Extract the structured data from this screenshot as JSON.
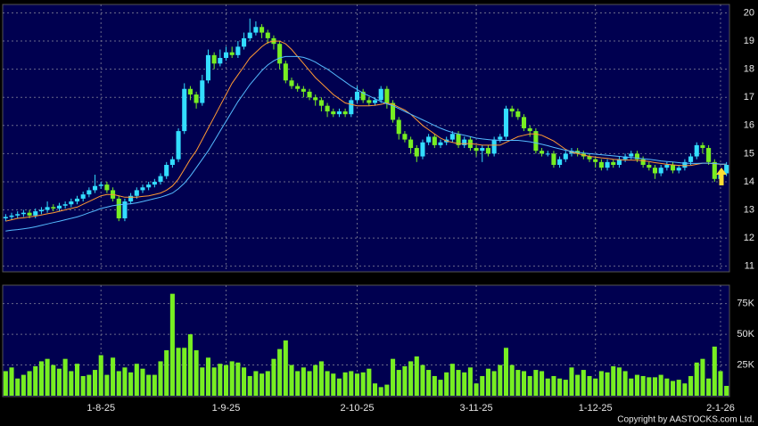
{
  "chart_data": [
    {
      "type": "candlestick",
      "open": [
        12.7,
        12.75,
        12.8,
        12.85,
        12.9,
        12.8,
        12.95,
        13.0,
        13.1,
        13.05,
        13.15,
        13.2,
        13.3,
        13.4,
        13.55,
        13.7,
        13.85,
        13.9,
        13.7,
        13.4,
        12.7,
        13.3,
        13.5,
        13.7,
        13.8,
        13.9,
        14.0,
        14.2,
        14.6,
        14.8,
        15.8,
        17.3,
        17.1,
        16.8,
        17.6,
        18.5,
        18.2,
        18.4,
        18.6,
        18.5,
        18.8,
        19.1,
        19.3,
        19.5,
        19.3,
        19.1,
        18.9,
        18.2,
        17.6,
        17.4,
        17.3,
        17.2,
        17.0,
        16.9,
        16.7,
        16.5,
        16.4,
        16.5,
        16.4,
        16.9,
        17.2,
        16.9,
        16.8,
        16.9,
        17.3,
        16.8,
        16.2,
        15.7,
        15.5,
        15.2,
        14.9,
        15.4,
        15.6,
        15.3,
        15.4,
        15.5,
        15.7,
        15.3,
        15.5,
        15.2,
        15.1,
        15.2,
        15.0,
        15.5,
        15.6,
        16.6,
        16.5,
        16.3,
        15.9,
        15.8,
        15.1,
        15.0,
        15.0,
        14.6,
        14.8,
        15.0,
        15.1,
        15.0,
        14.9,
        14.8,
        14.7,
        14.5,
        14.7,
        14.6,
        14.8,
        14.9,
        15.0,
        14.8,
        14.6,
        14.5,
        14.3,
        14.5,
        14.6,
        14.4,
        14.5,
        14.7,
        14.9,
        15.3,
        15.2,
        14.7,
        14.1,
        14.3
      ],
      "high": [
        12.85,
        12.9,
        12.95,
        13.0,
        13.0,
        13.05,
        13.1,
        13.3,
        13.2,
        13.25,
        13.3,
        13.4,
        13.5,
        13.65,
        13.8,
        14.25,
        14.0,
        14.0,
        13.8,
        13.5,
        13.4,
        13.6,
        13.8,
        13.9,
        14.0,
        14.1,
        14.3,
        14.7,
        14.9,
        15.9,
        17.5,
        17.4,
        17.2,
        17.8,
        18.7,
        18.6,
        18.7,
        18.8,
        18.8,
        19.0,
        19.3,
        19.8,
        19.7,
        19.6,
        19.4,
        19.2,
        19.0,
        18.3,
        17.7,
        17.5,
        17.4,
        17.3,
        17.1,
        17.0,
        16.8,
        16.6,
        16.6,
        16.6,
        17.0,
        17.4,
        17.3,
        17.0,
        17.0,
        17.4,
        17.4,
        16.9,
        16.3,
        15.8,
        15.6,
        15.3,
        15.5,
        15.7,
        15.7,
        15.5,
        15.6,
        15.8,
        15.8,
        15.6,
        15.6,
        15.3,
        15.3,
        15.3,
        15.6,
        15.7,
        16.7,
        16.7,
        16.6,
        16.4,
        16.0,
        15.9,
        15.2,
        15.1,
        15.1,
        14.9,
        15.1,
        15.2,
        15.2,
        15.1,
        15.0,
        14.9,
        14.8,
        14.8,
        14.8,
        14.9,
        15.0,
        15.1,
        15.1,
        14.9,
        14.7,
        14.6,
        14.6,
        14.7,
        14.7,
        14.6,
        14.8,
        15.0,
        15.4,
        15.4,
        15.3,
        14.8,
        14.4,
        14.7
      ],
      "low": [
        12.6,
        12.65,
        12.7,
        12.75,
        12.7,
        12.7,
        12.85,
        12.9,
        12.95,
        12.95,
        13.05,
        13.1,
        13.2,
        13.3,
        13.45,
        13.6,
        13.75,
        13.6,
        13.3,
        12.6,
        12.6,
        13.2,
        13.4,
        13.6,
        13.7,
        13.8,
        13.9,
        14.1,
        14.5,
        14.7,
        15.7,
        16.9,
        16.6,
        16.7,
        17.5,
        18.0,
        18.1,
        18.3,
        18.4,
        18.4,
        18.7,
        19.0,
        19.2,
        19.1,
        18.9,
        18.7,
        18.0,
        17.5,
        17.3,
        17.2,
        17.0,
        16.9,
        16.7,
        16.5,
        16.3,
        16.3,
        16.3,
        16.3,
        16.3,
        16.8,
        16.8,
        16.7,
        16.7,
        16.8,
        16.6,
        16.1,
        15.5,
        15.4,
        15.0,
        14.7,
        14.8,
        15.3,
        15.2,
        15.2,
        15.3,
        15.4,
        15.2,
        15.2,
        15.1,
        14.9,
        14.7,
        14.9,
        14.9,
        15.4,
        15.5,
        16.3,
        16.2,
        15.8,
        15.6,
        15.0,
        14.9,
        14.9,
        14.5,
        14.5,
        14.7,
        14.9,
        14.9,
        14.8,
        14.7,
        14.5,
        14.4,
        14.4,
        14.5,
        14.5,
        14.7,
        14.8,
        14.7,
        14.5,
        14.4,
        14.1,
        14.2,
        14.4,
        14.3,
        14.3,
        14.4,
        14.6,
        14.8,
        15.0,
        14.6,
        14.0,
        14.0,
        14.2
      ],
      "close": [
        12.75,
        12.8,
        12.85,
        12.9,
        12.8,
        12.95,
        13.0,
        13.1,
        13.05,
        13.15,
        13.2,
        13.3,
        13.4,
        13.55,
        13.7,
        13.85,
        13.9,
        13.7,
        13.4,
        12.7,
        13.3,
        13.5,
        13.7,
        13.8,
        13.9,
        14.0,
        14.2,
        14.6,
        14.8,
        15.8,
        17.3,
        17.1,
        16.8,
        17.6,
        18.5,
        18.2,
        18.4,
        18.6,
        18.5,
        18.8,
        19.1,
        19.3,
        19.5,
        19.3,
        19.1,
        18.9,
        18.2,
        17.6,
        17.4,
        17.3,
        17.2,
        17.0,
        16.9,
        16.7,
        16.5,
        16.4,
        16.5,
        16.4,
        16.9,
        17.2,
        16.9,
        16.8,
        16.9,
        17.3,
        16.8,
        16.2,
        15.7,
        15.5,
        15.2,
        14.9,
        15.4,
        15.6,
        15.3,
        15.4,
        15.5,
        15.7,
        15.3,
        15.5,
        15.2,
        15.1,
        15.2,
        15.0,
        15.5,
        15.6,
        16.6,
        16.5,
        16.3,
        15.9,
        15.8,
        15.1,
        15.0,
        15.0,
        14.6,
        14.8,
        15.0,
        15.1,
        15.0,
        14.9,
        14.8,
        14.7,
        14.5,
        14.7,
        14.6,
        14.8,
        14.9,
        15.0,
        14.8,
        14.6,
        14.5,
        14.3,
        14.5,
        14.6,
        14.4,
        14.5,
        14.7,
        14.9,
        15.3,
        15.2,
        14.7,
        14.1,
        14.3,
        14.6
      ],
      "up_color": "#33ddff",
      "down_color": "#77ee22",
      "lines": [
        {
          "color": "#ff9933",
          "values": [
            12.6,
            12.65,
            12.7,
            12.72,
            12.75,
            12.78,
            12.82,
            12.86,
            12.9,
            12.95,
            13.0,
            13.05,
            13.1,
            13.2,
            13.3,
            13.4,
            13.5,
            13.55,
            13.55,
            13.5,
            13.45,
            13.45,
            13.45,
            13.48,
            13.5,
            13.55,
            13.6,
            13.7,
            13.85,
            14.1,
            14.45,
            14.8,
            15.1,
            15.5,
            15.9,
            16.3,
            16.7,
            17.1,
            17.5,
            17.8,
            18.1,
            18.4,
            18.6,
            18.8,
            18.95,
            19.0,
            19.0,
            18.9,
            18.7,
            18.45,
            18.2,
            17.95,
            17.7,
            17.5,
            17.3,
            17.1,
            16.95,
            16.8,
            16.75,
            16.7,
            16.7,
            16.7,
            16.72,
            16.75,
            16.8,
            16.75,
            16.65,
            16.55,
            16.4,
            16.2,
            16.0,
            15.85,
            15.7,
            15.55,
            15.45,
            15.4,
            15.35,
            15.35,
            15.35,
            15.33,
            15.3,
            15.3,
            15.3,
            15.3,
            15.4,
            15.5,
            15.6,
            15.65,
            15.7,
            15.7,
            15.65,
            15.55,
            15.45,
            15.3,
            15.15,
            15.05,
            15.0,
            14.95,
            14.9,
            14.88,
            14.85,
            14.83,
            14.8,
            14.78,
            14.77,
            14.77,
            14.76,
            14.75,
            14.72,
            14.68,
            14.65,
            14.62,
            14.6,
            14.58,
            14.57,
            14.58,
            14.62,
            14.66,
            14.66,
            14.64,
            14.62,
            14.62
          ]
        },
        {
          "color": "#55bbff",
          "values": [
            12.25,
            12.28,
            12.3,
            12.33,
            12.36,
            12.4,
            12.45,
            12.5,
            12.55,
            12.6,
            12.65,
            12.7,
            12.75,
            12.82,
            12.9,
            12.97,
            13.05,
            13.1,
            13.15,
            13.18,
            13.2,
            13.22,
            13.25,
            13.3,
            13.35,
            13.4,
            13.45,
            13.52,
            13.6,
            13.75,
            13.95,
            14.2,
            14.5,
            14.8,
            15.1,
            15.45,
            15.8,
            16.15,
            16.5,
            16.85,
            17.15,
            17.45,
            17.7,
            17.95,
            18.15,
            18.3,
            18.4,
            18.45,
            18.45,
            18.45,
            18.42,
            18.35,
            18.25,
            18.12,
            18.0,
            17.85,
            17.7,
            17.55,
            17.4,
            17.28,
            17.15,
            17.05,
            16.95,
            16.85,
            16.77,
            16.7,
            16.6,
            16.5,
            16.4,
            16.3,
            16.2,
            16.1,
            16.0,
            15.9,
            15.82,
            15.75,
            15.7,
            15.65,
            15.6,
            15.55,
            15.52,
            15.5,
            15.48,
            15.47,
            15.47,
            15.47,
            15.47,
            15.45,
            15.42,
            15.38,
            15.33,
            15.28,
            15.22,
            15.17,
            15.12,
            15.08,
            15.05,
            15.02,
            15.0,
            14.98,
            14.96,
            14.94,
            14.92,
            14.9,
            14.88,
            14.86,
            14.84,
            14.82,
            14.8,
            14.77,
            14.74,
            14.72,
            14.7,
            14.68,
            14.66,
            14.65,
            14.65,
            14.66,
            14.66,
            14.65,
            14.63,
            14.63
          ]
        }
      ],
      "ylim": [
        10.8,
        20.3
      ],
      "yticks": [
        11,
        12,
        13,
        14,
        15,
        16,
        17,
        18,
        19,
        20
      ],
      "grid": true
    },
    {
      "type": "bar",
      "categories": [
        null,
        null,
        null,
        null,
        null,
        null,
        null,
        null,
        null,
        null,
        null,
        null,
        null,
        null,
        null,
        null,
        "1-8-25",
        null,
        null,
        null,
        null,
        null,
        null,
        null,
        null,
        null,
        null,
        null,
        null,
        null,
        null,
        null,
        null,
        null,
        null,
        null,
        null,
        "1-9-25",
        null,
        null,
        null,
        null,
        null,
        null,
        null,
        null,
        null,
        null,
        null,
        null,
        null,
        null,
        null,
        null,
        null,
        null,
        null,
        null,
        null,
        "2-10-25",
        null,
        null,
        null,
        null,
        null,
        null,
        null,
        null,
        null,
        null,
        null,
        null,
        null,
        null,
        null,
        null,
        null,
        null,
        null,
        "3-11-25",
        null,
        null,
        null,
        null,
        null,
        null,
        null,
        null,
        null,
        null,
        null,
        null,
        null,
        null,
        null,
        null,
        null,
        null,
        null,
        "1-12-25",
        null,
        null,
        null,
        null,
        null,
        null,
        null,
        null,
        null,
        null,
        null,
        null,
        null,
        null,
        null,
        null,
        null,
        null,
        null,
        null,
        "2-1-26",
        null
      ],
      "values": [
        20000,
        23000,
        14000,
        17000,
        20000,
        24000,
        28000,
        30000,
        25000,
        22000,
        30000,
        20000,
        26000,
        16000,
        17000,
        21000,
        33000,
        17000,
        31000,
        20000,
        23000,
        19000,
        26000,
        22000,
        17000,
        17000,
        28000,
        37000,
        83000,
        39000,
        39000,
        50000,
        37000,
        23000,
        31000,
        23000,
        26000,
        25000,
        28000,
        27000,
        23000,
        16000,
        20000,
        18000,
        20000,
        30000,
        38000,
        45000,
        25000,
        20000,
        23000,
        20000,
        25000,
        28000,
        20000,
        18000,
        14000,
        19000,
        20000,
        18000,
        19000,
        22000,
        10000,
        7000,
        9000,
        30000,
        21000,
        24000,
        28000,
        32000,
        25000,
        21000,
        16000,
        13000,
        19000,
        26000,
        21000,
        19000,
        23000,
        10000,
        16000,
        22000,
        20000,
        25000,
        39000,
        25000,
        21000,
        20000,
        16000,
        21000,
        20000,
        14000,
        16000,
        14000,
        13000,
        23000,
        17000,
        21000,
        16000,
        14000,
        20000,
        19000,
        24000,
        23000,
        20000,
        14000,
        17000,
        16000,
        15000,
        15000,
        17000,
        14000,
        12000,
        13000,
        10000,
        16000,
        27000,
        30000,
        14000,
        40000,
        20000,
        8000
      ],
      "color": "#77ee22",
      "ylim": [
        0,
        90000
      ],
      "yticks": [
        {
          "value": 25000,
          "label": "25K"
        },
        {
          "value": 50000,
          "label": "50K"
        },
        {
          "value": 75000,
          "label": "75K"
        }
      ],
      "grid": true
    }
  ],
  "footer": "Copyright by AASTOCKS.com Ltd."
}
